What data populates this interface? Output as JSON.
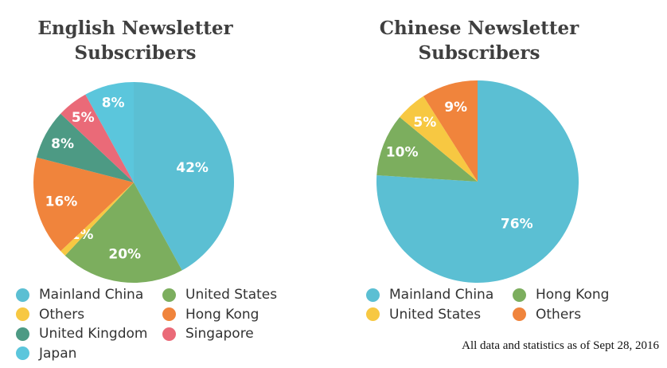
{
  "chart_data": [
    {
      "type": "pie",
      "title": "English Newsletter Subscribers",
      "categories": [
        "Mainland China",
        "United States",
        "Others",
        "Hong Kong",
        "United Kingdom",
        "Singapore",
        "Japan"
      ],
      "values": [
        42,
        20,
        1,
        16,
        8,
        5,
        8
      ],
      "labels": [
        "42%",
        "20%",
        "1%",
        "16%",
        "8%",
        "5%",
        "8%"
      ],
      "colors": [
        "#5bbfd3",
        "#7cae5e",
        "#f7c842",
        "#f0843c",
        "#4d9a84",
        "#ea6a78",
        "#5bc6dc"
      ],
      "legend": [
        {
          "label": "Mainland China",
          "color": "#5bbfd3"
        },
        {
          "label": "United States",
          "color": "#7cae5e"
        },
        {
          "label": "Others",
          "color": "#f7c842"
        },
        {
          "label": "Hong Kong",
          "color": "#f0843c"
        },
        {
          "label": "United Kingdom",
          "color": "#4d9a84"
        },
        {
          "label": "Singapore",
          "color": "#ea6a78"
        },
        {
          "label": "Japan",
          "color": "#5bc6dc"
        }
      ],
      "legend_position": "bottom"
    },
    {
      "type": "pie",
      "title": "Chinese Newsletter Subscribers",
      "categories": [
        "Mainland China",
        "Hong Kong",
        "United States",
        "Others"
      ],
      "values": [
        76,
        10,
        5,
        9
      ],
      "labels": [
        "76%",
        "10%",
        "5%",
        "9%"
      ],
      "colors": [
        "#5bbfd3",
        "#7cae5e",
        "#f7c842",
        "#f0843c"
      ],
      "legend": [
        {
          "label": "Mainland China",
          "color": "#5bbfd3"
        },
        {
          "label": "Hong Kong",
          "color": "#7cae5e"
        },
        {
          "label": "United States",
          "color": "#f7c842"
        },
        {
          "label": "Others",
          "color": "#f0843c"
        }
      ],
      "legend_position": "bottom"
    }
  ],
  "footnote": "All data and statistics as of Sept 28, 2016"
}
